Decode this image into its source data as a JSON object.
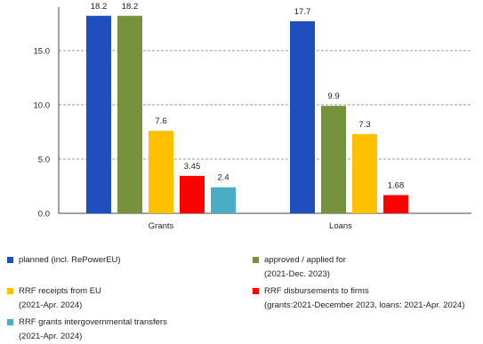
{
  "chart_data": {
    "type": "bar",
    "categories": [
      "Grants",
      "Loans"
    ],
    "ylim": [
      0,
      19
    ],
    "yticks": [
      "0.0",
      "5.0",
      "10.0",
      "15.0"
    ],
    "ytick_values": [
      0,
      5,
      10,
      15
    ],
    "grid": true,
    "legend_position": "bottom",
    "series": [
      {
        "name": "planned (incl. RePowerEU)",
        "color": "#1f4fbf",
        "values": [
          18.2,
          17.7
        ],
        "labels": [
          "18.2",
          "17.7"
        ]
      },
      {
        "name": "approved / applied for",
        "name_line2": "(2021-Dec. 2023)",
        "color": "#76923c",
        "values": [
          18.2,
          9.9
        ],
        "labels": [
          "18.2",
          "9.9"
        ]
      },
      {
        "name": "RRF receipts from EU",
        "name_line2": "(2021-Apr. 2024)",
        "color": "#ffc000",
        "values": [
          7.6,
          7.3
        ],
        "labels": [
          "7.6",
          "7.3"
        ]
      },
      {
        "name": "RRF disbursements to firms",
        "name_line2": "(grants:2021-December 2023, loans: 2021-Apr. 2024)",
        "color": "#ff0000",
        "values": [
          3.45,
          1.68
        ],
        "labels": [
          "3.45",
          "1.68"
        ]
      },
      {
        "name": "RRF grants intergovernmental transfers",
        "name_line2": "(2021-Apr. 2024)",
        "color": "#4bacc6",
        "values": [
          2.4,
          null
        ],
        "labels": [
          "2.4",
          ""
        ]
      }
    ]
  }
}
